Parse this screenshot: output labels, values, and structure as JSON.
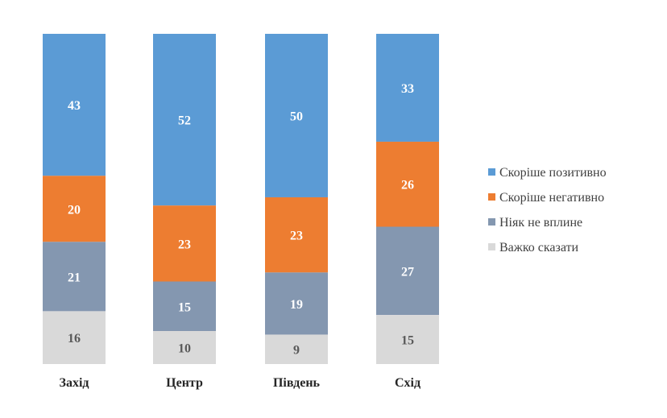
{
  "chart_data": {
    "type": "bar",
    "stacked": true,
    "categories": [
      "Захід",
      "Центр",
      "Південь",
      "Схід"
    ],
    "series": [
      {
        "name": "Скоріше позитивно",
        "color": "#5B9BD5",
        "label_color": "#ffffff",
        "values": [
          43,
          52,
          50,
          33
        ]
      },
      {
        "name": "Скоріше негативно",
        "color": "#ED7D31",
        "label_color": "#ffffff",
        "values": [
          20,
          23,
          23,
          26
        ]
      },
      {
        "name": "Ніяк не вплине",
        "color": "#8497B0",
        "label_color": "#ffffff",
        "values": [
          21,
          15,
          19,
          27
        ]
      },
      {
        "name": "Важко сказати",
        "color": "#D9D9D9",
        "label_color": "#595959",
        "values": [
          16,
          10,
          9,
          15
        ]
      }
    ],
    "legend_position": "right",
    "grid": false
  }
}
